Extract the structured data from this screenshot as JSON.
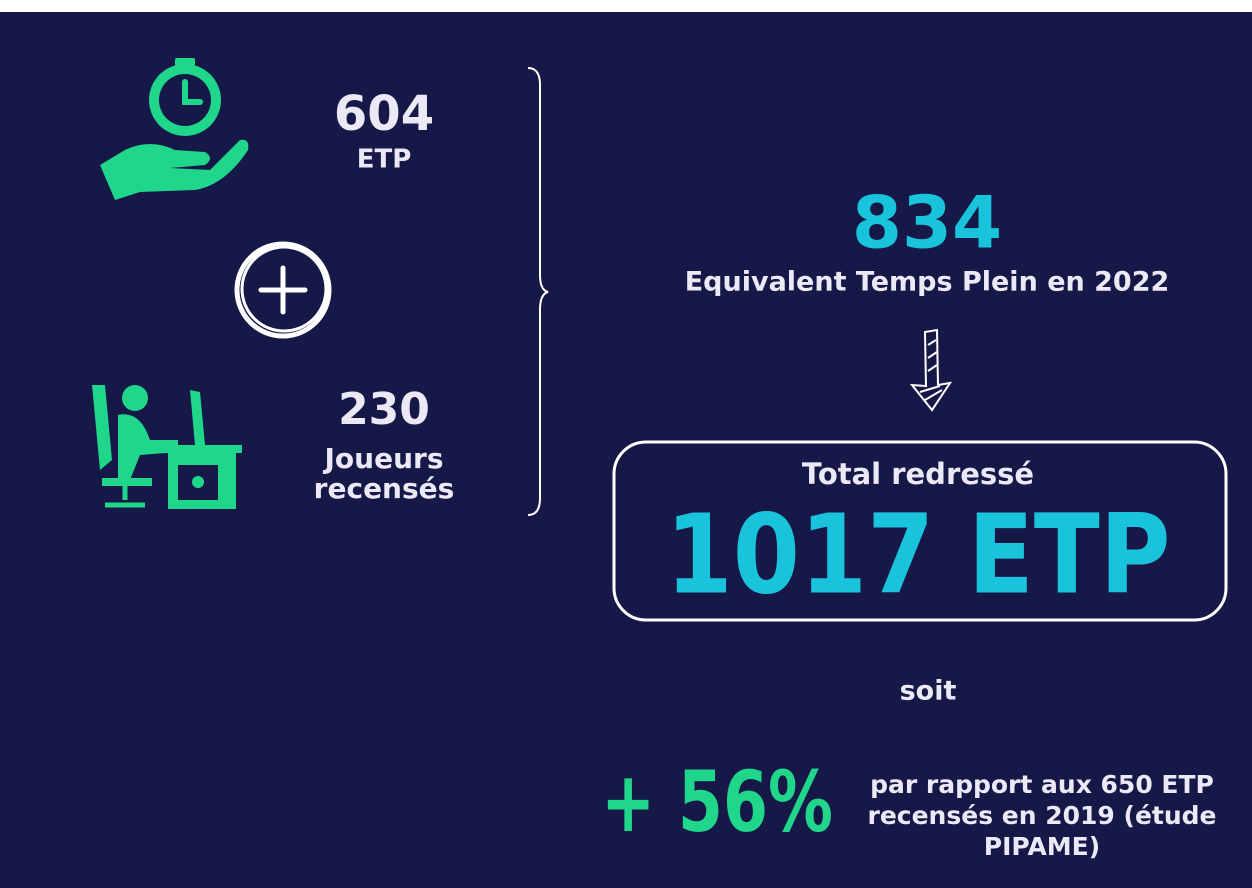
{
  "left": {
    "top": {
      "number": "604",
      "label": "ETP"
    },
    "bottom": {
      "number": "230",
      "label_lines": [
        "Joueurs",
        "recensés"
      ]
    }
  },
  "right": {
    "number": "834",
    "caption": "Equivalent Temps Plein en 2022",
    "box": {
      "title": "Total redressé",
      "value": "1017 ETP"
    },
    "connector": "soit",
    "growth": {
      "value": "+ 56%",
      "text_lines": [
        "par rapport aux 650 ETP",
        "recensés en 2019 (étude",
        "PIPAME)"
      ]
    }
  }
}
